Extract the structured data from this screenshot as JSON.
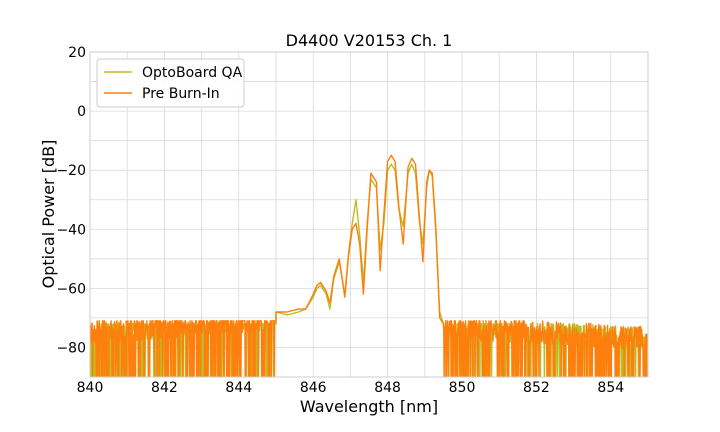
{
  "chart_data": {
    "type": "line",
    "title": "D4400 V20153 Ch. 1",
    "xlabel": "Wavelength [nm]",
    "ylabel": "Optical Power [dB]",
    "xlim": [
      840,
      855
    ],
    "ylim": [
      -90,
      20
    ],
    "xticks": [
      "840",
      "842",
      "844",
      "846",
      "848",
      "850",
      "852",
      "854"
    ],
    "yticks": [
      "20",
      "0",
      "−20",
      "−40",
      "−60",
      "−80"
    ],
    "grid": true,
    "legend_position": "top-left",
    "noise_floor": {
      "OptoBoard QA": {
        "min": -90,
        "max": -72
      },
      "Pre Burn-In": {
        "min": -90,
        "max": -71
      }
    },
    "series": [
      {
        "name": "OptoBoard QA",
        "color": "#bcbd22",
        "x": [
          845.0,
          845.3,
          845.6,
          845.8,
          846.0,
          846.1,
          846.2,
          846.35,
          846.45,
          846.55,
          846.7,
          846.85,
          846.95,
          847.05,
          847.15,
          847.25,
          847.35,
          847.45,
          847.55,
          847.7,
          847.8,
          847.9,
          848.0,
          848.1,
          848.2,
          848.3,
          848.42,
          848.55,
          848.65,
          848.75,
          848.85,
          848.95,
          849.05,
          849.12,
          849.2,
          849.3,
          849.4,
          849.5
        ],
        "y": [
          -68,
          -69,
          -68,
          -67,
          -63,
          -60,
          -59,
          -62,
          -67,
          -57,
          -51,
          -62,
          -48,
          -38,
          -30,
          -42,
          -58,
          -38,
          -23,
          -26,
          -47,
          -38,
          -20,
          -18,
          -20,
          -33,
          -39,
          -21,
          -18,
          -21,
          -37,
          -45,
          -26,
          -20,
          -22,
          -42,
          -68,
          -72
        ]
      },
      {
        "name": "Pre Burn-In",
        "color": "#ff7f0e",
        "x": [
          845.0,
          845.3,
          845.6,
          845.8,
          846.0,
          846.1,
          846.2,
          846.35,
          846.45,
          846.55,
          846.7,
          846.85,
          846.95,
          847.05,
          847.15,
          847.25,
          847.35,
          847.45,
          847.55,
          847.7,
          847.8,
          847.9,
          848.0,
          848.1,
          848.2,
          848.3,
          848.42,
          848.55,
          848.65,
          848.75,
          848.85,
          848.95,
          849.05,
          849.12,
          849.2,
          849.3,
          849.4,
          849.5
        ],
        "y": [
          -68,
          -68,
          -67,
          -67,
          -62,
          -59,
          -58,
          -61,
          -65,
          -56,
          -50,
          -63,
          -49,
          -40,
          -38,
          -45,
          -62,
          -40,
          -21,
          -24,
          -54,
          -35,
          -17,
          -15,
          -17,
          -32,
          -45,
          -19,
          -16,
          -18,
          -35,
          -51,
          -24,
          -20,
          -21,
          -40,
          -70,
          -72
        ]
      }
    ]
  }
}
